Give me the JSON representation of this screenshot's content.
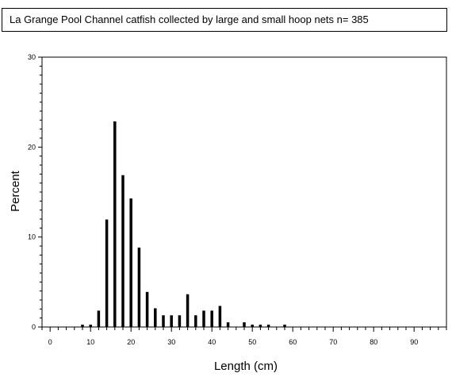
{
  "chart_data": {
    "type": "bar",
    "title": "La Grange Pool Channel catfish collected by large and small hoop nets n= 385",
    "xlabel": "Length (cm)",
    "ylabel": "Percent",
    "xlim": [
      -2,
      98
    ],
    "ylim": [
      0,
      30
    ],
    "x_ticks": [
      0,
      10,
      20,
      30,
      40,
      50,
      60,
      70,
      80,
      90
    ],
    "y_ticks": [
      0,
      10,
      20,
      30
    ],
    "grid": false,
    "bin_width": 2,
    "x": [
      8,
      10,
      12,
      14,
      16,
      18,
      20,
      22,
      24,
      26,
      28,
      30,
      32,
      34,
      36,
      38,
      40,
      42,
      44,
      48,
      50,
      52,
      54,
      58
    ],
    "values": [
      0.26,
      0.26,
      1.82,
      11.95,
      22.86,
      16.88,
      14.29,
      8.83,
      3.9,
      2.08,
      1.3,
      1.3,
      1.3,
      3.64,
      1.3,
      1.82,
      1.82,
      2.34,
      0.52,
      0.52,
      0.26,
      0.26,
      0.26,
      0.26
    ]
  }
}
